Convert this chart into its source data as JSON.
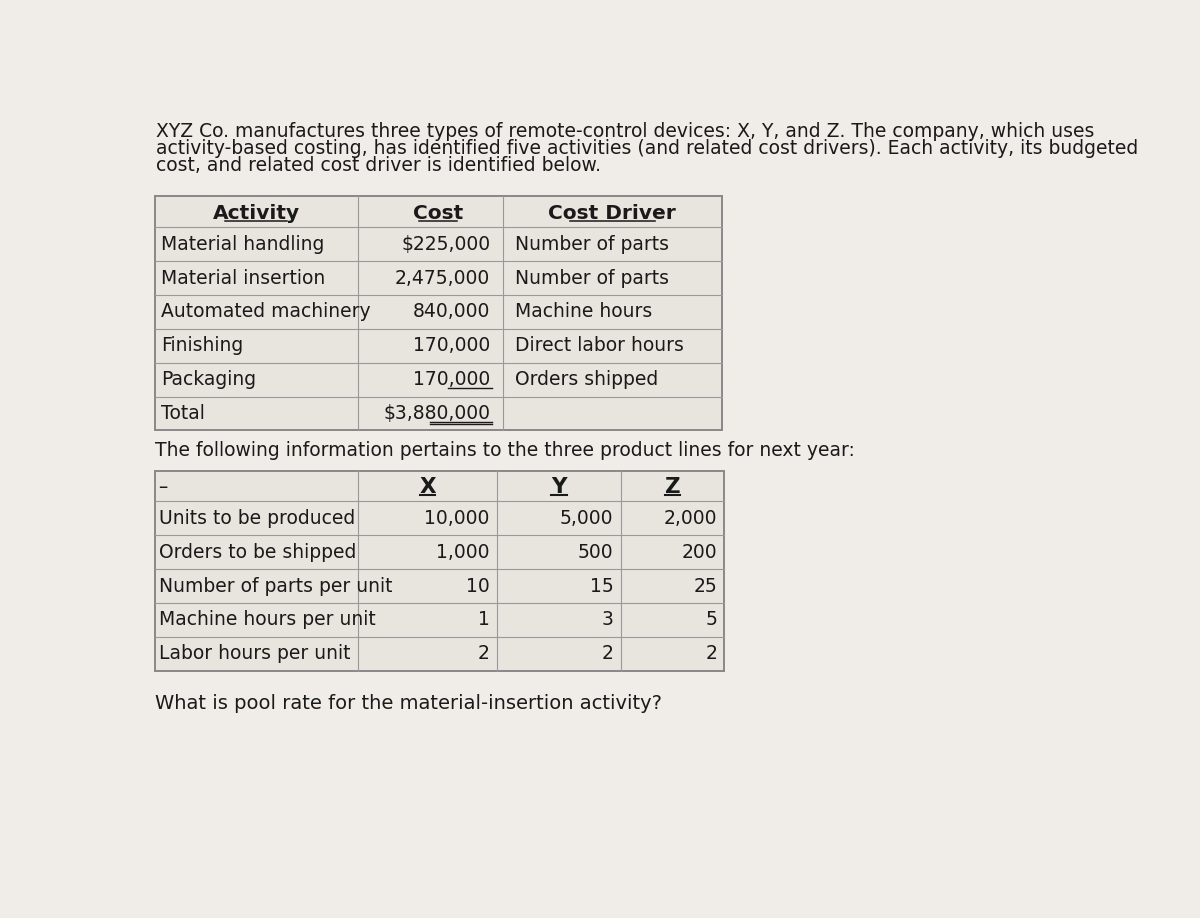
{
  "intro_text_lines": [
    "XYZ Co. manufactures three types of remote-control devices: X, Y, and Z. The company, which uses",
    "activity-based costing, has identified five activities (and related cost drivers). Each activity, its budgeted",
    "cost, and related cost driver is identified below."
  ],
  "table1_headers": [
    "Activity",
    "Cost",
    "Cost Driver"
  ],
  "table1_rows": [
    [
      "Material handling",
      "$225,000",
      "Number of parts"
    ],
    [
      "Material insertion",
      "2,475,000",
      "Number of parts"
    ],
    [
      "Automated machinery",
      "840,000",
      "Machine hours"
    ],
    [
      "Finishing",
      "170,000",
      "Direct labor hours"
    ],
    [
      "Packaging",
      "170,000",
      "Orders shipped"
    ],
    [
      "Total",
      "$3,880,000",
      ""
    ]
  ],
  "middle_text": "The following information pertains to the three product lines for next year:",
  "table2_headers": [
    "",
    "X",
    "Y",
    "Z"
  ],
  "table2_rows": [
    [
      "Units to be produced",
      "10,000",
      "5,000",
      "2,000"
    ],
    [
      "Orders to be shipped",
      "1,000",
      "500",
      "200"
    ],
    [
      "Number of parts per unit",
      "10",
      "15",
      "25"
    ],
    [
      "Machine hours per unit",
      "1",
      "3",
      "5"
    ],
    [
      "Labor hours per unit",
      "2",
      "2",
      "2"
    ]
  ],
  "bottom_text": "What is pool rate for the material-insertion activity?",
  "bg_color": "#f0ede8",
  "table_bg": "#e8e4de",
  "text_color": "#1a1a1a",
  "font_size": 13.5,
  "header_font_size": 14.5,
  "underline_rows": [
    "Packaging",
    "Total"
  ]
}
